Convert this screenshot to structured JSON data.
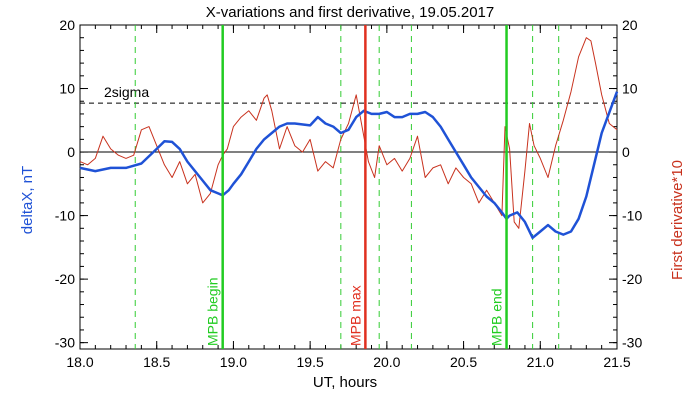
{
  "chart_data": {
    "type": "line",
    "title": "X-variations and first derivative, 19.05.2017",
    "xlabel": "UT, hours",
    "ylabel_left": "deltaX, nT",
    "ylabel_right": "First derivative*10",
    "xlim": [
      18.0,
      21.5
    ],
    "ylim": [
      -31,
      20
    ],
    "xticks": [
      "18.0",
      "18.5",
      "19.0",
      "19.5",
      "20.0",
      "20.5",
      "21.0",
      "21.5"
    ],
    "yticks": [
      "20",
      "10",
      "0",
      "-10",
      "-20",
      "-30"
    ],
    "sigma_label": "2sigma",
    "sigma_level": 7.7,
    "zero_level": 0,
    "colors": {
      "deltaX": "#1f52d6",
      "derivative": "#c8321e",
      "mpb_edge": "#22cc22",
      "mpb_max": "#e03020",
      "dashed_green": "#33cc33"
    },
    "vertical_markers": [
      {
        "label": "MPB begin",
        "x": 18.93,
        "color": "#22cc22"
      },
      {
        "label": "MPB max",
        "x": 19.86,
        "color": "#e03020"
      },
      {
        "label": "MPB end",
        "x": 20.78,
        "color": "#22cc22"
      }
    ],
    "dashed_markers": [
      18.36,
      19.7,
      19.95,
      20.16,
      20.95,
      21.12
    ],
    "series": [
      {
        "name": "deltaX",
        "x": [
          18.0,
          18.1,
          18.2,
          18.3,
          18.4,
          18.5,
          18.55,
          18.6,
          18.65,
          18.7,
          18.8,
          18.85,
          18.9,
          18.93,
          18.97,
          19.0,
          19.05,
          19.1,
          19.15,
          19.2,
          19.25,
          19.3,
          19.35,
          19.4,
          19.5,
          19.55,
          19.6,
          19.65,
          19.7,
          19.75,
          19.8,
          19.85,
          19.9,
          19.95,
          20.0,
          20.05,
          20.1,
          20.15,
          20.2,
          20.25,
          20.3,
          20.35,
          20.4,
          20.45,
          20.5,
          20.55,
          20.6,
          20.65,
          20.7,
          20.75,
          20.78,
          20.8,
          20.85,
          20.9,
          20.95,
          21.0,
          21.05,
          21.1,
          21.15,
          21.2,
          21.25,
          21.3,
          21.35,
          21.4,
          21.5
        ],
        "y": [
          -2.5,
          -3.0,
          -2.5,
          -2.5,
          -1.8,
          0.5,
          1.7,
          1.6,
          0.5,
          -1.5,
          -4.5,
          -6.0,
          -6.5,
          -6.8,
          -6.0,
          -5.0,
          -3.5,
          -1.5,
          0.5,
          2.0,
          3.0,
          4.0,
          4.5,
          4.5,
          4.2,
          5.5,
          4.5,
          4.0,
          3.0,
          3.5,
          5.5,
          6.5,
          6.0,
          6.0,
          6.3,
          5.5,
          5.5,
          6.0,
          6.0,
          6.3,
          5.5,
          4.0,
          2.0,
          0.0,
          -2.0,
          -4.0,
          -5.5,
          -7.0,
          -8.0,
          -9.5,
          -10.5,
          -10.0,
          -9.5,
          -11.0,
          -13.5,
          -12.5,
          -11.5,
          -12.5,
          -13.0,
          -12.5,
          -10.5,
          -7.0,
          -2.0,
          3.0,
          9.5
        ]
      },
      {
        "name": "First derivative*10",
        "x": [
          18.0,
          18.05,
          18.1,
          18.15,
          18.2,
          18.25,
          18.3,
          18.35,
          18.4,
          18.45,
          18.5,
          18.55,
          18.6,
          18.65,
          18.7,
          18.75,
          18.8,
          18.85,
          18.9,
          18.93,
          18.96,
          19.0,
          19.05,
          19.1,
          19.15,
          19.2,
          19.22,
          19.25,
          19.3,
          19.35,
          19.4,
          19.45,
          19.5,
          19.55,
          19.6,
          19.65,
          19.7,
          19.75,
          19.8,
          19.85,
          19.88,
          19.92,
          19.95,
          20.0,
          20.05,
          20.1,
          20.15,
          20.2,
          20.25,
          20.3,
          20.35,
          20.4,
          20.45,
          20.5,
          20.55,
          20.6,
          20.65,
          20.7,
          20.75,
          20.77,
          20.8,
          20.83,
          20.86,
          20.9,
          20.93,
          20.96,
          21.0,
          21.05,
          21.1,
          21.15,
          21.2,
          21.25,
          21.3,
          21.33,
          21.36,
          21.4,
          21.45,
          21.5
        ],
        "y": [
          -1.5,
          -2.0,
          -1.0,
          2.5,
          0.5,
          -0.5,
          -1.0,
          -0.5,
          3.5,
          4.0,
          1.0,
          -2.0,
          -4.0,
          -1.5,
          -5.0,
          -3.5,
          -8.0,
          -6.5,
          -2.0,
          -0.5,
          0.5,
          4.0,
          5.5,
          6.5,
          5.0,
          8.5,
          9.0,
          6.5,
          0.5,
          4.0,
          1.0,
          0.0,
          2.0,
          -3.0,
          -1.5,
          -2.5,
          2.0,
          4.5,
          9.0,
          2.5,
          -1.5,
          -4.0,
          1.0,
          -2.0,
          -1.0,
          -3.0,
          -1.0,
          2.5,
          -4.0,
          -2.5,
          -2.0,
          -5.0,
          -2.5,
          -4.0,
          -5.0,
          -8.0,
          -6.0,
          -8.0,
          -10.0,
          4.0,
          0.5,
          -11.0,
          -12.0,
          -3.0,
          4.5,
          1.0,
          -1.0,
          -4.0,
          1.0,
          5.0,
          9.5,
          15.0,
          18.0,
          17.5,
          14.0,
          9.0,
          4.5,
          3.5
        ]
      }
    ]
  }
}
